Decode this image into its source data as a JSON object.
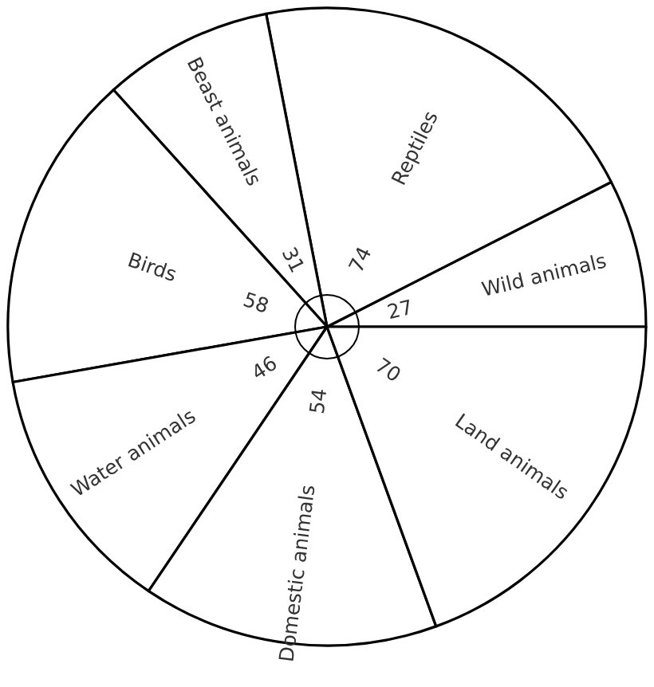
{
  "chart_data": {
    "type": "pie",
    "categories": [
      "Wild animals",
      "Reptiles",
      "Beast animals",
      "Birds",
      "Water animals",
      "Domestic animals",
      "Land animals"
    ],
    "values": [
      27,
      74,
      31,
      58,
      46,
      54,
      70
    ],
    "colors": [
      "#ffffff",
      "#ffffff",
      "#ffffff",
      "#ffffff",
      "#ffffff",
      "#ffffff",
      "#ffffff"
    ],
    "data_labels": true
  }
}
